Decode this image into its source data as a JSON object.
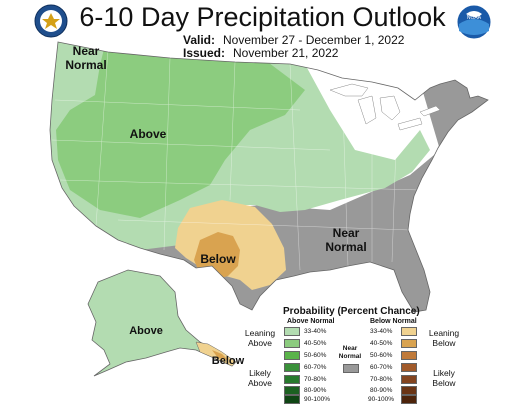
{
  "title": "6-10 Day Precipitation Outlook",
  "valid_label": "Valid:",
  "valid_dates": "November 27 - December 1, 2022",
  "issued_label": "Issued:",
  "issued_date": "November 21, 2022",
  "logos": {
    "left": "commerce-seal-icon",
    "right": "noaa-logo-icon",
    "right_text": "NOAA"
  },
  "map_labels": {
    "near_normal_nw": "Near\nNormal",
    "above_west": "Above",
    "below_south": "Below",
    "near_normal_se": "Near\nNormal",
    "above_alaska": "Above",
    "below_alaska": "Below"
  },
  "colors": {
    "above_33_40": "#b3dcb1",
    "above_40_50": "#8ccc7f",
    "above_50_60": "#5ab44a",
    "above_60_70": "#3a913a",
    "above_70_80": "#287a2d",
    "above_80_90": "#1c6121",
    "above_90_100": "#0f4514",
    "below_33_40": "#f0d290",
    "below_40_50": "#d9a350",
    "below_50_60": "#c07a3a",
    "below_60_70": "#a15a2a",
    "below_70_80": "#83441f",
    "below_80_90": "#6a3414",
    "below_90_100": "#4d240b",
    "near_normal": "#999999"
  },
  "legend": {
    "title": "Probability (Percent Chance)",
    "above_header": "Above Normal",
    "below_header": "Below Normal",
    "near_normal_label": "Near\nNormal",
    "leaning_above": "Leaning\nAbove",
    "likely_above": "Likely\nAbove",
    "leaning_below": "Leaning\nBelow",
    "likely_below": "Likely\nBelow",
    "above_ranges": [
      "33-40%",
      "40-50%",
      "50-60%",
      "60-70%",
      "70-80%",
      "80-90%",
      "90-100%"
    ],
    "below_ranges": [
      "33-40%",
      "40-50%",
      "50-60%",
      "60-70%",
      "70-80%",
      "80-90%",
      "90-100%"
    ]
  }
}
